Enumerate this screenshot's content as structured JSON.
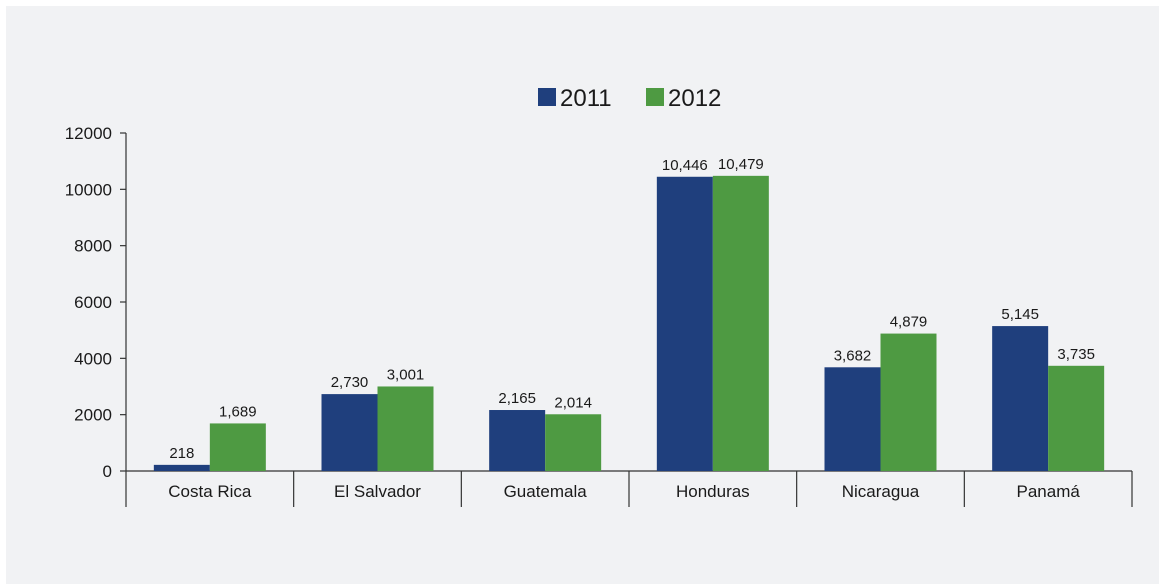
{
  "chart_data": {
    "type": "bar",
    "title": "",
    "xlabel": "",
    "ylabel": "",
    "categories": [
      "Costa Rica",
      "El Salvador",
      "Guatemala",
      "Honduras",
      "Nicaragua",
      "Panamá"
    ],
    "series": [
      {
        "name": "2011",
        "color": "#1f3f7d",
        "values": [
          218,
          2730,
          2165,
          10446,
          3682,
          5145
        ],
        "labels": [
          "218",
          "2,730",
          "2,165",
          "10,446",
          "3,682",
          "5,145"
        ]
      },
      {
        "name": "2012",
        "color": "#4e9a42",
        "values": [
          1689,
          3001,
          2014,
          10479,
          4879,
          3735
        ],
        "labels": [
          "1,689",
          "3,001",
          "2,014",
          "10,479",
          "4,879",
          "3,735"
        ]
      }
    ],
    "ylim": [
      0,
      12000
    ],
    "yticks": [
      "0",
      "2000",
      "4000",
      "6000",
      "8000",
      "10000",
      "12000"
    ],
    "grid": false,
    "legend": "top-center"
  }
}
